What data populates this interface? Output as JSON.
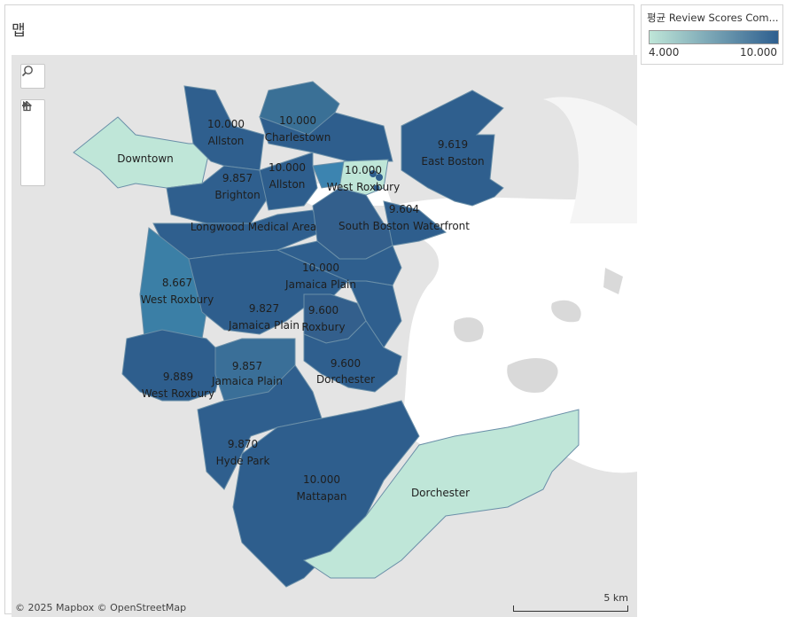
{
  "sheet": {
    "title": "맵"
  },
  "legend": {
    "title": "평균 Review Scores Com...",
    "min_label": "4.000",
    "max_label": "10.000",
    "color_low": "#bfe6d8",
    "color_high": "#2e5f8f"
  },
  "map_controls": {
    "search_icon": "search-icon",
    "zoom_in_icon": "plus-icon",
    "zoom_out_icon": "minus-icon",
    "home_icon": "home-icon",
    "expand_icon": "play-icon"
  },
  "attribution": "© 2025 Mapbox © OpenStreetMap",
  "scale": {
    "label": "5 km"
  },
  "regions": [
    {
      "name": "Downtown",
      "value": ""
    },
    {
      "name": "Allston",
      "value": "10.000"
    },
    {
      "name": "Charlestown",
      "value": "10.000"
    },
    {
      "name": "Brighton",
      "value": "9.857"
    },
    {
      "name": "Allston",
      "value": "10.000"
    },
    {
      "name": "West Roxbury",
      "value": "10.000"
    },
    {
      "name": "East Boston",
      "value": "9.619"
    },
    {
      "name": "Longwood Medical Area",
      "value": ""
    },
    {
      "name": "South Boston Waterfront",
      "value": "9.604"
    },
    {
      "name": "Jamaica Plain",
      "value": "10.000"
    },
    {
      "name": "West Roxbury",
      "value": "8.667"
    },
    {
      "name": "Jamaica Plain",
      "value": "9.827"
    },
    {
      "name": "Roxbury",
      "value": "9.600"
    },
    {
      "name": "West Roxbury",
      "value": "9.889"
    },
    {
      "name": "Jamaica Plain",
      "value": "9.857"
    },
    {
      "name": "Dorchester",
      "value": "9.600"
    },
    {
      "name": "Hyde Park",
      "value": "9.870"
    },
    {
      "name": "Mattapan",
      "value": "10.000"
    },
    {
      "name": "Dorchester",
      "value": ""
    }
  ]
}
